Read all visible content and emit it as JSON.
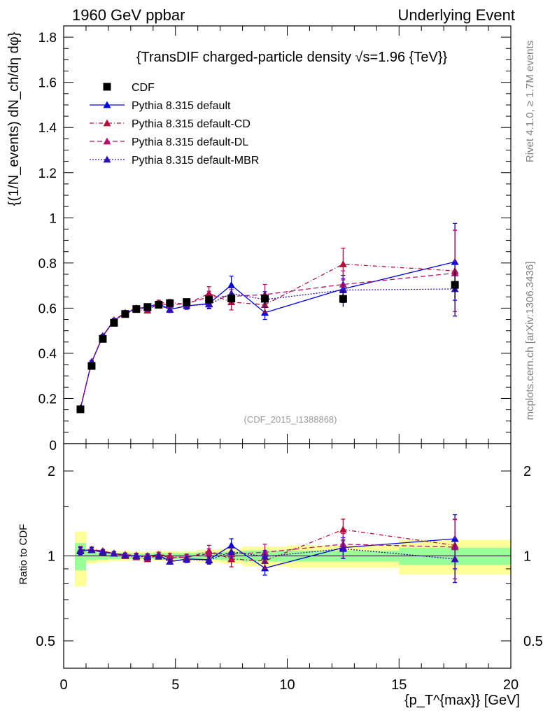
{
  "header": {
    "left": "1960 GeV ppbar",
    "right": "Underlying Event"
  },
  "side_labels": {
    "rivet": "Rivet 4.1.0, ≥ 1.7M events",
    "mcplots": "mcplots.cern.ch [arXiv:1306.3436]"
  },
  "chart_data": [
    {
      "type": "line",
      "panel": "main",
      "title": "{TransDIF charged-particle density √s=1.96 {TeV}}",
      "watermark": "(CDF_2015_I1388868)",
      "ylabel": "{(1/N_events) dN_ch/dη dφ}",
      "xlabel": "{p_T^{max}} [GeV]",
      "xlim": [
        0,
        20
      ],
      "ylim": [
        0,
        1.85
      ],
      "yticks": [
        0.2,
        0.4,
        0.6,
        0.8,
        1,
        1.2,
        1.4,
        1.6,
        1.8
      ],
      "ytick_labels": [
        "0.2",
        "0.4",
        "0.6",
        "0.8",
        "1",
        "1.2",
        "1.4",
        "1.6",
        "1.8"
      ],
      "bottom_label": "0",
      "legend": {
        "position": "top-left",
        "entries": [
          "CDF",
          "Pythia 8.315 default",
          "Pythia 8.315 default-CD",
          "Pythia 8.315 default-DL",
          "Pythia 8.315 default-MBR"
        ]
      },
      "data_series": {
        "name": "CDF",
        "color": "#000000",
        "x": [
          0.75,
          1.25,
          1.75,
          2.25,
          2.75,
          3.25,
          3.75,
          4.25,
          4.75,
          5.5,
          6.5,
          7.5,
          9.0,
          12.5,
          17.5
        ],
        "y": [
          0.152,
          0.344,
          0.464,
          0.535,
          0.574,
          0.596,
          0.605,
          0.615,
          0.622,
          0.627,
          0.638,
          0.643,
          0.642,
          0.641,
          0.703
        ],
        "yerr": [
          0.008,
          0.012,
          0.012,
          0.012,
          0.012,
          0.012,
          0.012,
          0.012,
          0.013,
          0.014,
          0.018,
          0.022,
          0.027,
          0.035,
          0.06
        ]
      },
      "series": [
        {
          "name": "Pythia 8.315 default",
          "color": "#0000e0",
          "dash": "",
          "x": [
            0.75,
            1.25,
            1.75,
            2.25,
            2.75,
            3.25,
            3.75,
            4.25,
            4.75,
            5.5,
            6.5,
            7.5,
            9.0,
            12.5,
            17.5
          ],
          "y": [
            0.155,
            0.36,
            0.475,
            0.545,
            0.578,
            0.597,
            0.605,
            0.62,
            0.594,
            0.61,
            0.62,
            0.702,
            0.58,
            0.685,
            0.805
          ],
          "yerr": [
            0.005,
            0.006,
            0.007,
            0.008,
            0.009,
            0.01,
            0.011,
            0.012,
            0.013,
            0.015,
            0.02,
            0.04,
            0.03,
            0.06,
            0.17
          ]
        },
        {
          "name": "Pythia 8.315 default-CD",
          "color": "#b0103a",
          "dash": "6,3,1,3",
          "x": [
            0.75,
            1.25,
            1.75,
            2.25,
            2.75,
            3.25,
            3.75,
            4.25,
            4.75,
            5.5,
            6.5,
            7.5,
            9.0,
            12.5,
            17.5
          ],
          "y": [
            0.157,
            0.362,
            0.477,
            0.546,
            0.576,
            0.593,
            0.59,
            0.623,
            0.625,
            0.617,
            0.665,
            0.627,
            0.615,
            0.795,
            0.765
          ],
          "yerr": [
            0.005,
            0.006,
            0.007,
            0.008,
            0.009,
            0.01,
            0.012,
            0.012,
            0.013,
            0.015,
            0.03,
            0.035,
            0.035,
            0.07,
            0.18
          ]
        },
        {
          "name": "Pythia 8.315 default-DL",
          "color": "#b01070",
          "dash": "7,4",
          "x": [
            0.75,
            1.25,
            1.75,
            2.25,
            2.75,
            3.25,
            3.75,
            4.25,
            4.75,
            5.5,
            6.5,
            7.5,
            9.0,
            12.5,
            17.5
          ],
          "y": [
            0.157,
            0.362,
            0.477,
            0.547,
            0.58,
            0.6,
            0.603,
            0.62,
            0.614,
            0.62,
            0.65,
            0.652,
            0.66,
            0.705,
            0.755
          ],
          "yerr": [
            0.005,
            0.006,
            0.007,
            0.008,
            0.009,
            0.01,
            0.011,
            0.012,
            0.013,
            0.015,
            0.025,
            0.03,
            0.045,
            0.06,
            0.19
          ]
        },
        {
          "name": "Pythia 8.315 default-MBR",
          "color": "#3010b0",
          "dash": "2,2",
          "x": [
            0.75,
            1.25,
            1.75,
            2.25,
            2.75,
            3.25,
            3.75,
            4.25,
            4.75,
            5.5,
            6.5,
            7.5,
            9.0,
            12.5,
            17.5
          ],
          "y": [
            0.156,
            0.361,
            0.476,
            0.545,
            0.578,
            0.598,
            0.6,
            0.612,
            0.594,
            0.61,
            0.617,
            0.665,
            0.638,
            0.68,
            0.685
          ],
          "yerr": [
            0.005,
            0.006,
            0.007,
            0.008,
            0.009,
            0.01,
            0.011,
            0.012,
            0.013,
            0.015,
            0.02,
            0.03,
            0.035,
            0.05,
            0.12
          ]
        }
      ]
    },
    {
      "type": "line",
      "panel": "ratio",
      "ylabel": "Ratio to CDF",
      "xlabel": "{p_T^{max}} [GeV]",
      "xlim": [
        0,
        20
      ],
      "ylim": [
        0.4,
        2.5
      ],
      "yscale": "log",
      "xticks": [
        0,
        5,
        10,
        15,
        20
      ],
      "xtick_labels": [
        "0",
        "5",
        "10",
        "15",
        "20"
      ],
      "yticks": [
        0.5,
        1,
        2
      ],
      "ytick_labels": [
        "0.5",
        "1",
        "2"
      ],
      "bands": {
        "x_edges": [
          0.5,
          1.0,
          1.5,
          2.0,
          2.5,
          3.0,
          3.5,
          4.0,
          4.5,
          5.0,
          6.0,
          7.0,
          8.0,
          10.0,
          15.0,
          20.0
        ],
        "yellow_half_width": [
          0.22,
          0.06,
          0.05,
          0.04,
          0.04,
          0.035,
          0.035,
          0.04,
          0.04,
          0.04,
          0.05,
          0.06,
          0.08,
          0.09,
          0.14
        ],
        "green_half_width": [
          0.11,
          0.035,
          0.03,
          0.025,
          0.025,
          0.02,
          0.02,
          0.025,
          0.025,
          0.025,
          0.03,
          0.035,
          0.045,
          0.045,
          0.07
        ],
        "yellow_color": "#ffff99",
        "green_color": "#99ff99"
      },
      "series": [
        {
          "name": "Pythia 8.315 default",
          "color": "#0000e0",
          "dash": "",
          "x": [
            0.75,
            1.25,
            1.75,
            2.25,
            2.75,
            3.25,
            3.75,
            4.25,
            4.75,
            5.5,
            6.5,
            7.5,
            9.0,
            12.5,
            17.5
          ],
          "y": [
            1.04,
            1.05,
            1.03,
            1.02,
            1.005,
            1.0,
            1.0,
            1.01,
            0.955,
            0.975,
            0.97,
            1.09,
            0.905,
            1.07,
            1.15
          ],
          "yerr": [
            0.03,
            0.02,
            0.015,
            0.015,
            0.015,
            0.017,
            0.018,
            0.02,
            0.02,
            0.025,
            0.03,
            0.06,
            0.05,
            0.09,
            0.25
          ]
        },
        {
          "name": "Pythia 8.315 default-CD",
          "color": "#b0103a",
          "dash": "6,3,1,3",
          "x": [
            0.75,
            1.25,
            1.75,
            2.25,
            2.75,
            3.25,
            3.75,
            4.25,
            4.75,
            5.5,
            6.5,
            7.5,
            9.0,
            12.5,
            17.5
          ],
          "y": [
            1.05,
            1.055,
            1.04,
            1.02,
            1.0,
            0.99,
            0.975,
            1.01,
            1.0,
            0.985,
            1.04,
            0.975,
            0.96,
            1.24,
            1.09
          ],
          "yerr": [
            0.03,
            0.02,
            0.015,
            0.015,
            0.015,
            0.017,
            0.02,
            0.02,
            0.02,
            0.025,
            0.05,
            0.06,
            0.06,
            0.11,
            0.26
          ]
        },
        {
          "name": "Pythia 8.315 default-DL",
          "color": "#b01070",
          "dash": "7,4",
          "x": [
            0.75,
            1.25,
            1.75,
            2.25,
            2.75,
            3.25,
            3.75,
            4.25,
            4.75,
            5.5,
            6.5,
            7.5,
            9.0,
            12.5,
            17.5
          ],
          "y": [
            1.05,
            1.055,
            1.04,
            1.02,
            1.01,
            1.005,
            0.995,
            1.01,
            0.985,
            0.99,
            1.02,
            1.015,
            1.03,
            1.1,
            1.075
          ],
          "yerr": [
            0.03,
            0.02,
            0.015,
            0.015,
            0.015,
            0.017,
            0.018,
            0.02,
            0.02,
            0.025,
            0.04,
            0.05,
            0.07,
            0.1,
            0.27
          ]
        },
        {
          "name": "Pythia 8.315 default-MBR",
          "color": "#3010b0",
          "dash": "2,2",
          "x": [
            0.75,
            1.25,
            1.75,
            2.25,
            2.75,
            3.25,
            3.75,
            4.25,
            4.75,
            5.5,
            6.5,
            7.5,
            9.0,
            12.5,
            17.5
          ],
          "y": [
            1.045,
            1.05,
            1.035,
            1.02,
            1.005,
            1.0,
            0.99,
            0.995,
            0.955,
            0.972,
            0.965,
            1.035,
            0.995,
            1.06,
            0.975
          ],
          "yerr": [
            0.03,
            0.02,
            0.015,
            0.015,
            0.015,
            0.017,
            0.018,
            0.02,
            0.02,
            0.025,
            0.03,
            0.05,
            0.05,
            0.08,
            0.17
          ]
        }
      ]
    }
  ]
}
